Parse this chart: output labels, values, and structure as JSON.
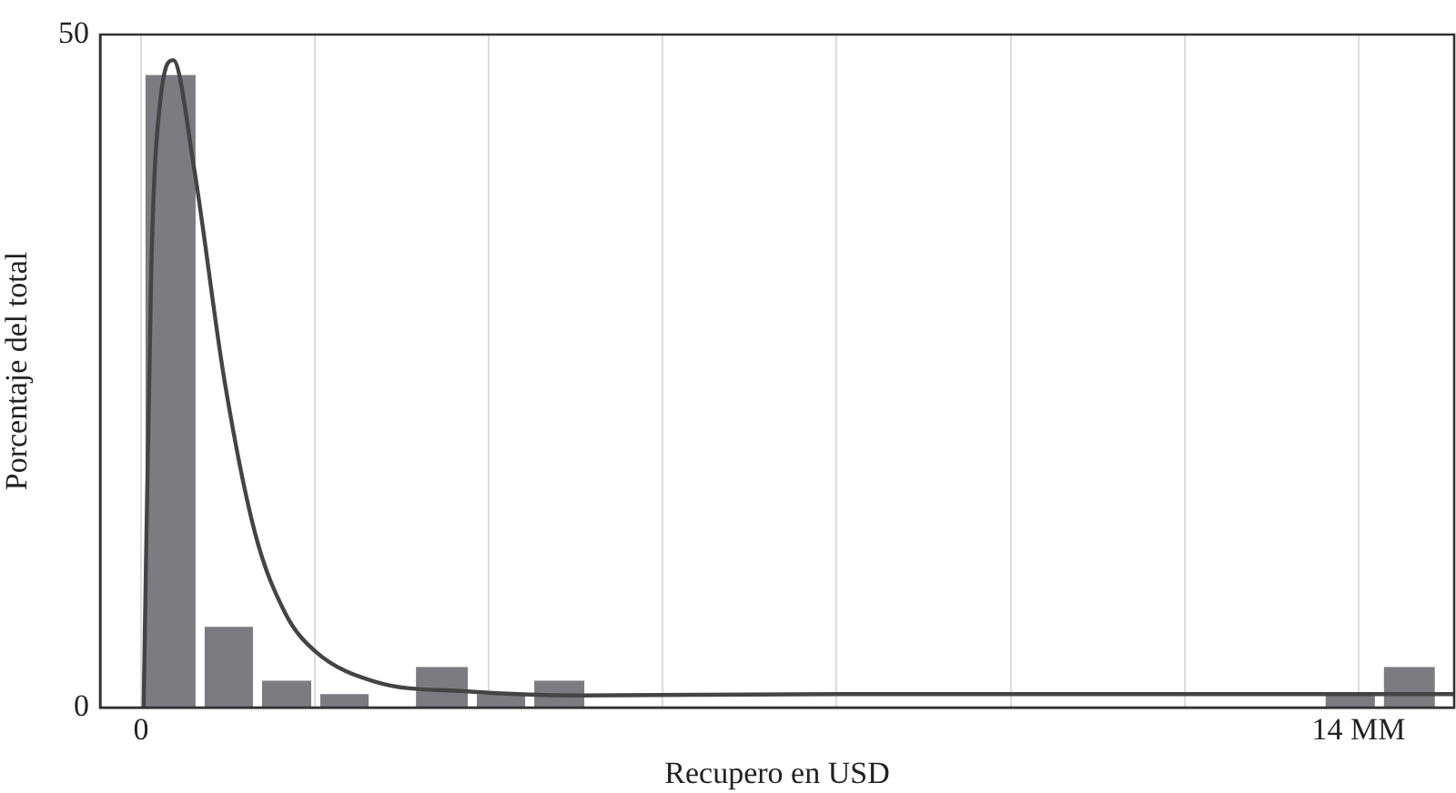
{
  "chart_data": {
    "type": "histogram",
    "xlabel": "Recupero en USD",
    "ylabel": "Porcentaje del total",
    "bins": [
      0,
      0.68,
      1.34,
      2.01,
      2.67,
      3.11,
      3.81,
      4.47,
      5.15,
      13.57,
      14.24,
      14.93
    ],
    "values": [
      47,
      6,
      2,
      1,
      0,
      3,
      1,
      2,
      0,
      1,
      3
    ],
    "color": "#7b7b80",
    "series": [
      {
        "type": "line",
        "color": "#444444",
        "x": [
          0.03,
          0.12,
          0.23,
          0.37,
          0.61,
          0.96,
          1.31,
          1.66,
          2.0,
          2.7,
          3.75,
          5.0,
          8.0,
          12.0,
          15.1
        ],
        "values": [
          0,
          33,
          45.5,
          48.1,
          40.1,
          24.3,
          13,
          7,
          4.2,
          1.9,
          1.2,
          0.9,
          1.0,
          1.0,
          1.0
        ]
      }
    ],
    "xlim": [
      -0.47,
      15.1
    ],
    "xticks": [
      {
        "value": 0,
        "label": "0"
      },
      {
        "value": 2,
        "label": null
      },
      {
        "value": 4,
        "label": null
      },
      {
        "value": 6,
        "label": null
      },
      {
        "value": 8,
        "label": null
      },
      {
        "value": 10,
        "label": null
      },
      {
        "value": 12,
        "label": null
      },
      {
        "value": 14,
        "label": "14 MM"
      }
    ],
    "ylim": [
      0,
      50
    ],
    "yticks": [
      0,
      50
    ],
    "grid": "x",
    "legend": false,
    "marker": "none",
    "line_style": "solid"
  }
}
